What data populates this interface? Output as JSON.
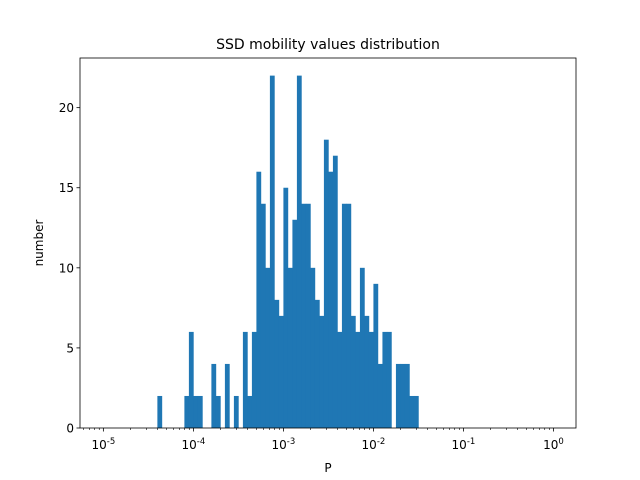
{
  "chart_data": {
    "type": "bar",
    "title": "SSD mobility values distribution",
    "xlabel": "P",
    "ylabel": "number",
    "xscale": "log",
    "xlim": [
      5.5e-06,
      1.78
    ],
    "ylim": [
      0,
      23.1
    ],
    "xticks": [
      {
        "value": 1e-05,
        "label": "10^-5"
      },
      {
        "value": 0.0001,
        "label": "10^-4"
      },
      {
        "value": 0.001,
        "label": "10^-3"
      },
      {
        "value": 0.01,
        "label": "10^-2"
      },
      {
        "value": 0.1,
        "label": "10^-1"
      },
      {
        "value": 1,
        "label": "10^0"
      }
    ],
    "yticks": [
      0,
      5,
      10,
      15,
      20
    ],
    "color": "#1f77b4",
    "bin_log_start": -5,
    "bin_log_width": 0.05,
    "series": [
      {
        "name": "count",
        "values": [
          0,
          0,
          0,
          0,
          0,
          0,
          0,
          0,
          0,
          0,
          0,
          0,
          2,
          0,
          0,
          0,
          0,
          0,
          2,
          6,
          2,
          2,
          0,
          0,
          4,
          2,
          0,
          4,
          0,
          2,
          0,
          6,
          2,
          6,
          16,
          14,
          10,
          22,
          8,
          7,
          15,
          10,
          13,
          22,
          14,
          14,
          10,
          8,
          7,
          18,
          16,
          17,
          6,
          14,
          14,
          7,
          6,
          10,
          7,
          6,
          9,
          4,
          6,
          6,
          0,
          4,
          4,
          4,
          2,
          2,
          0,
          0,
          0,
          0,
          0,
          0,
          0,
          0,
          0,
          0,
          0,
          0,
          0,
          0,
          0,
          0,
          0,
          0,
          0,
          0,
          0,
          0,
          0,
          0,
          0,
          0,
          0,
          0,
          0,
          0,
          0,
          0,
          0,
          0,
          0
        ]
      }
    ]
  }
}
